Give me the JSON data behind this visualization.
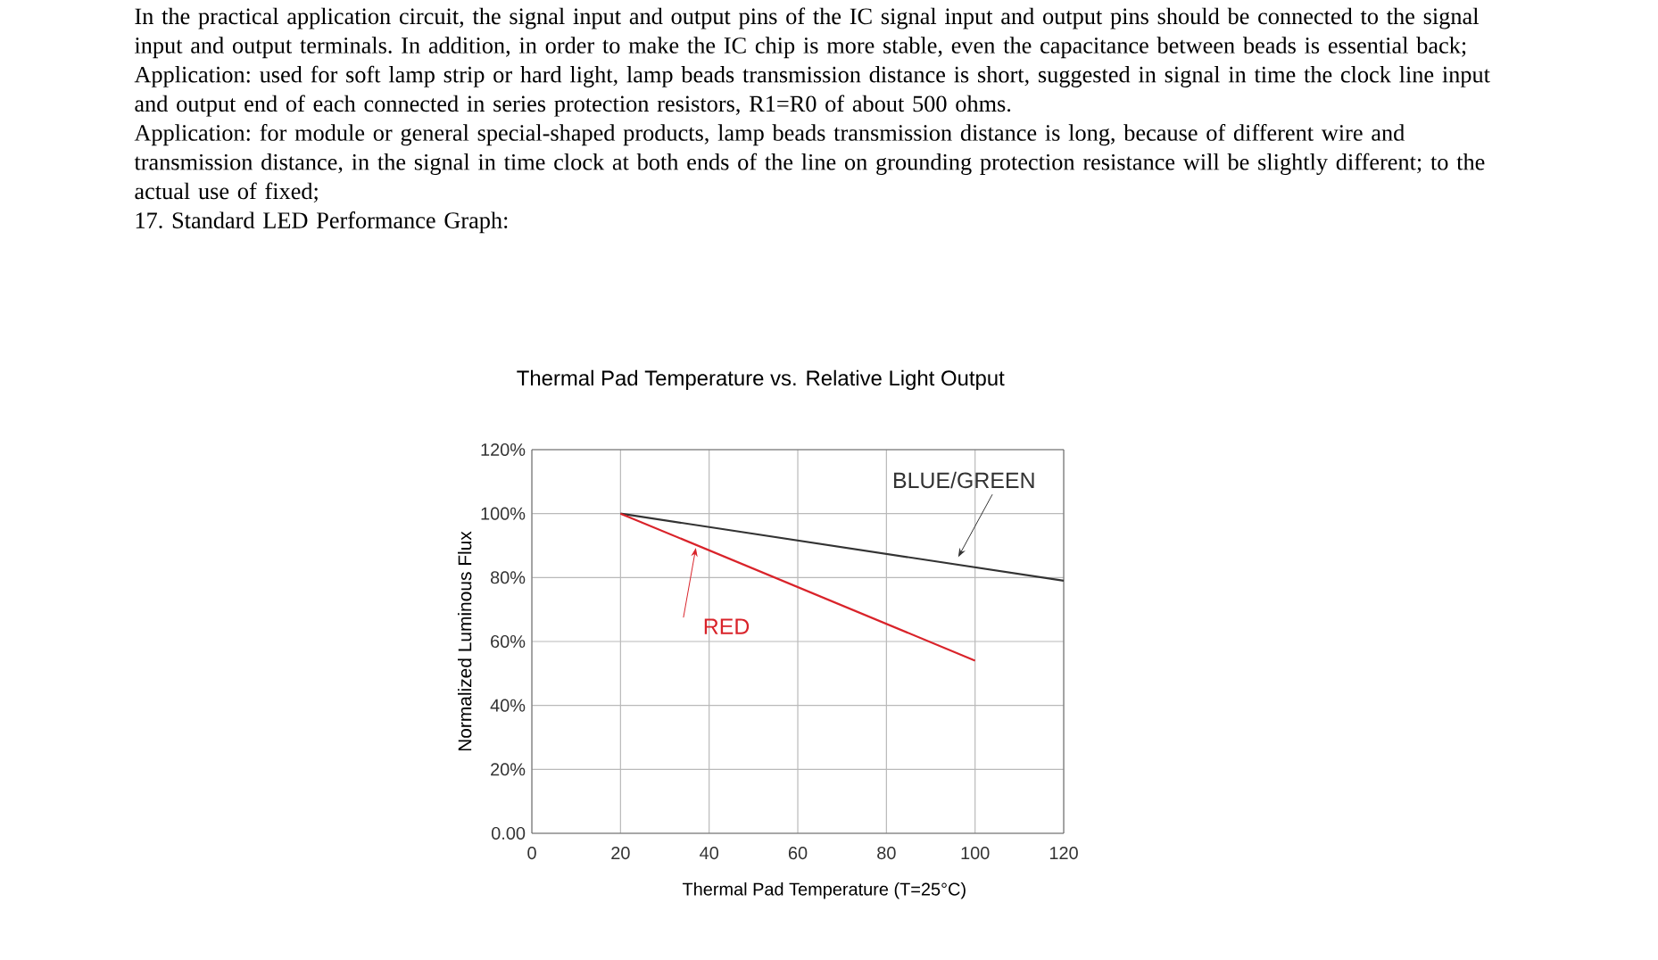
{
  "chart_data": {
    "type": "line",
    "title": "Thermal Pad Temperature vs. Relative Light Output",
    "xlabel": "Thermal Pad Temperature (T=25°C)",
    "ylabel": "Normalized Luminous Flux",
    "annotations": [
      "In the practical application circuit, the signal input and output pins of the IC signal input and output pins should be connected to the signal input and output terminals. In addition, in order to make the IC chip is more stable, even the capacitance between beads is essential back;",
      "Application: used for soft lamp strip or hard light, lamp beads transmission distance is short, suggested in signal in time the clock line input and output end of each connected in series protection resistors, R1=R0 of about 500 ohms.",
      "Application: for module or general special-shaped products, lamp beads transmission distance is long, because of different wire and transmission distance, in the signal in time clock at both ends of the line on grounding protection resistance will be slightly different; to the actual use of fixed;",
      "17. Standard LED Performance Graph:"
    ],
    "series": [
      {
        "name": "BLUE/GREEN",
        "color": "#333333",
        "x": [
          20,
          120
        ],
        "values": [
          100,
          79
        ]
      },
      {
        "name": "RED",
        "color": "#d9232a",
        "x": [
          20,
          100
        ],
        "values": [
          100,
          54
        ]
      }
    ],
    "xlim": [
      0,
      120
    ],
    "xticks": [
      0,
      20,
      40,
      60,
      80,
      100,
      120
    ],
    "ylim": [
      0,
      120
    ],
    "yticks": [
      {
        "value": 0,
        "label": "0.00"
      },
      {
        "value": 20,
        "label": "20%"
      },
      {
        "value": 40,
        "label": "40%"
      },
      {
        "value": 60,
        "label": "60%"
      },
      {
        "value": 80,
        "label": "80%"
      },
      {
        "value": 100,
        "label": "100%"
      },
      {
        "value": 120,
        "label": "120%"
      }
    ],
    "grid": true,
    "marker": "none",
    "line_style": "solid"
  }
}
